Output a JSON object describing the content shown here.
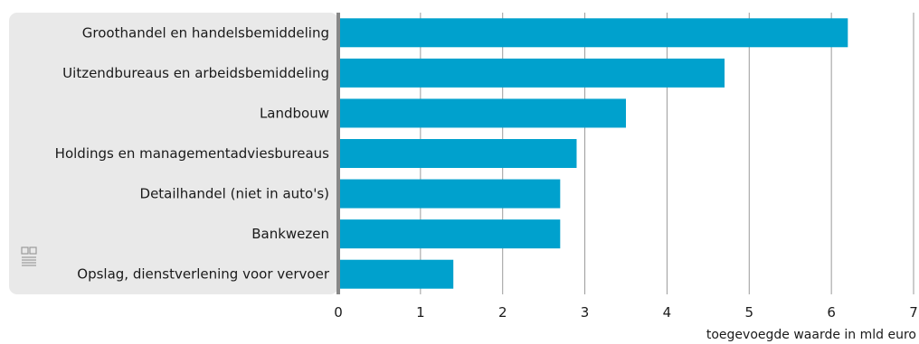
{
  "chart_data": {
    "type": "bar",
    "orientation": "horizontal",
    "categories": [
      "Groothandel en handelsbemiddeling",
      "Uitzendbureaus en arbeidsbemiddeling",
      "Landbouw",
      "Holdings en managementadviesbureaus",
      "Detailhandel (niet in auto's)",
      "Bankwezen",
      "Opslag, dienstverlening voor vervoer"
    ],
    "values": [
      6.2,
      4.7,
      3.5,
      2.9,
      2.7,
      2.7,
      1.4
    ],
    "xlabel": "toegevoegde waarde in mld euro",
    "ylabel": "",
    "xlim": [
      0,
      7
    ],
    "xticks": [
      "0",
      "1",
      "2",
      "3",
      "4",
      "5",
      "6",
      "7"
    ],
    "grid": "vertical",
    "bar_color": "#00a1cd",
    "label_panel_color": "#e9e9e9",
    "axis_color": "#888888",
    "grid_color": "#9a9a9a"
  },
  "logo": {
    "icon": "cbs-logo-icon",
    "color": "#9a9a9a",
    "text": "cbs"
  }
}
